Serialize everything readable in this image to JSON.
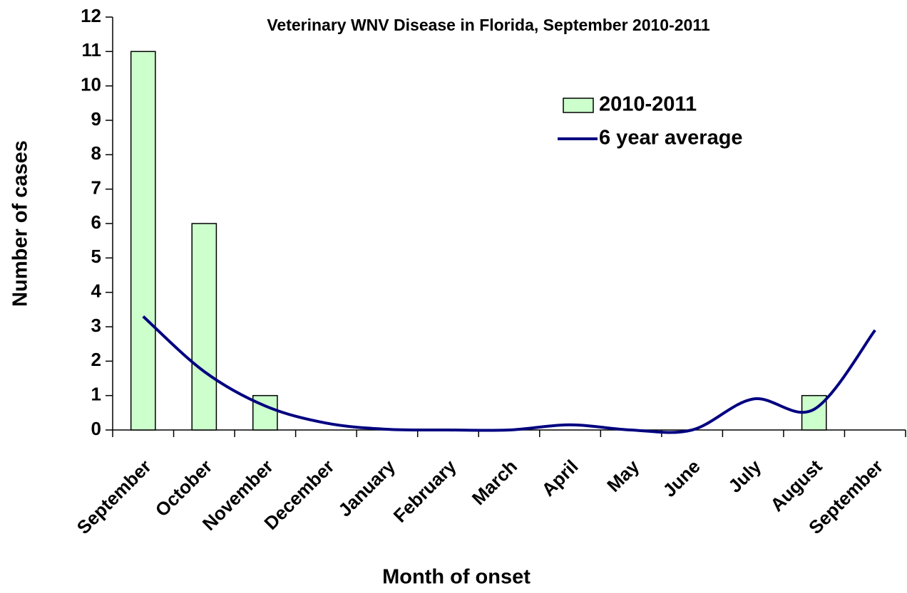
{
  "chart_data": {
    "type": "bar_line",
    "title": "Veterinary WNV Disease in Florida, September 2010-2011",
    "x_label": "Month of onset",
    "y_label": "Number of cases",
    "categories": [
      "September",
      "October",
      "November",
      "December",
      "January",
      "February",
      "March",
      "April",
      "May",
      "June",
      "July",
      "August",
      "September"
    ],
    "series": [
      {
        "name": "2010-2011",
        "type": "bar",
        "color": "#ccffcc",
        "values": [
          11,
          6,
          1,
          0,
          0,
          0,
          0,
          0,
          0,
          0,
          0,
          1,
          0
        ]
      },
      {
        "name": "6 year average",
        "type": "line",
        "color": "#000080",
        "values": [
          3.3,
          1.7,
          0.7,
          0.2,
          0.02,
          0,
          0,
          0.15,
          0,
          0,
          0.9,
          0.6,
          2.9
        ]
      }
    ],
    "ylim": [
      0,
      12
    ],
    "yticks": [
      0,
      1,
      2,
      3,
      4,
      5,
      6,
      7,
      8,
      9,
      10,
      11,
      12
    ],
    "grid": false
  }
}
